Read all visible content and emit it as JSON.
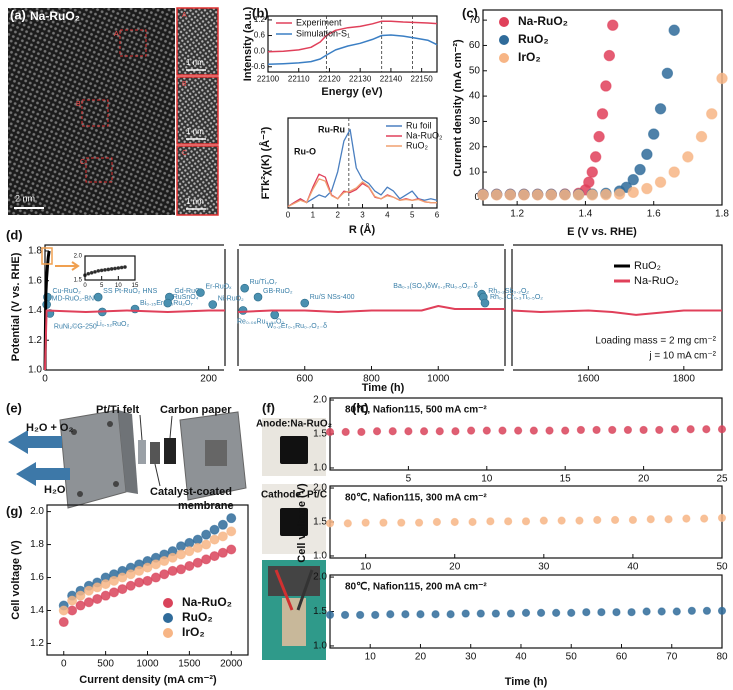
{
  "panels": {
    "labels": [
      "(a)",
      "(b)",
      "(c)",
      "(d)",
      "(e)",
      "(f)",
      "(g)",
      "(h)"
    ],
    "a": {
      "title": "Na-RuO₂",
      "scale": "2 nm",
      "regions": [
        "A",
        "B",
        "C"
      ],
      "insets": [
        {
          "letter": "A",
          "scale": "1 nm"
        },
        {
          "letter": "B",
          "scale": "1 nm"
        },
        {
          "letter": "C",
          "scale": "1 nm"
        }
      ]
    },
    "e": {
      "felt": "Pt/Ti felt",
      "paper": "Carbon paper",
      "outlet": "H₂O + O₂",
      "inlet": "H₂O",
      "ccm1": "Catalyst-coated",
      "ccm2": "membrane"
    },
    "f": {
      "anode": "Anode:Na-RuO₂",
      "cathode": "Cathode: Pt/C"
    }
  },
  "chart_data": [
    {
      "type": "line",
      "xlabel": "Energy (eV)",
      "ylabel": "Intensity (a.u.)",
      "xlim": [
        22100,
        22155
      ],
      "xticks": [
        22100,
        22110,
        22120,
        22130,
        22140,
        22150
      ],
      "ylim": [
        -0.8,
        1.35
      ],
      "yticks": [
        -0.6,
        {
          "value": 0,
          "label": "0.0"
        },
        0.6,
        1.2
      ],
      "vlines": [
        22119,
        22137,
        22147
      ],
      "legend": "upper left",
      "x": [
        22100,
        22105,
        22110,
        22114,
        22117,
        22119,
        22122,
        22126,
        22130,
        22134,
        22137,
        22140,
        22144,
        22148,
        22152,
        22155
      ],
      "series": [
        {
          "name": "Experiment",
          "color": "#e0405a",
          "values": [
            -0.02,
            0.0,
            0.05,
            0.15,
            0.35,
            0.6,
            0.8,
            0.9,
            0.95,
            1.05,
            1.15,
            1.15,
            1.12,
            1.1,
            1.08,
            1.06
          ]
        },
        {
          "name": "Simulation-S₁",
          "color": "#3b7fc4",
          "values": [
            -0.5,
            -0.48,
            -0.45,
            -0.4,
            -0.3,
            -0.15,
            0.05,
            0.2,
            0.3,
            0.45,
            0.6,
            0.62,
            0.58,
            0.5,
            0.42,
            0.25
          ]
        }
      ]
    },
    {
      "type": "line",
      "xlabel": "R (Å)",
      "ylabel": "FTk²χ(K) (Å⁻³)",
      "xlim": [
        0,
        6
      ],
      "xticks": [
        0,
        1,
        2,
        3,
        4,
        5,
        6
      ],
      "ylim": [
        -0.02,
        1.15
      ],
      "vlines": [
        2.45
      ],
      "legend": "upper right",
      "annotations": [
        "Ru-O",
        "Ru-Ru"
      ],
      "x": [
        0,
        0.25,
        0.5,
        0.75,
        1,
        1.25,
        1.5,
        1.75,
        2,
        2.25,
        2.5,
        2.75,
        3,
        3.25,
        3.5,
        3.75,
        4,
        4.25,
        4.5,
        4.75,
        5,
        5.25,
        5.5,
        5.75,
        6
      ],
      "series": [
        {
          "name": "Ru foil",
          "color": "#4a7fc0",
          "values": [
            0,
            0.05,
            0.1,
            0.05,
            0.1,
            0.15,
            0.12,
            0.2,
            0.45,
            0.85,
            1.0,
            0.5,
            0.35,
            0.3,
            0.2,
            0.15,
            0.25,
            0.2,
            0.1,
            0.15,
            0.2,
            0.1,
            0.08,
            0.1,
            0.08
          ]
        },
        {
          "name": "Na-RuO₂",
          "color": "#e0405a",
          "values": [
            0,
            0.05,
            0.1,
            0.05,
            0.25,
            0.42,
            0.38,
            0.15,
            0.1,
            0.2,
            0.18,
            0.22,
            0.3,
            0.25,
            0.12,
            0.1,
            0.15,
            0.12,
            0.08,
            0.1,
            0.08,
            0.1,
            0.06,
            0.05,
            0.05
          ]
        },
        {
          "name": "RuO₂",
          "color": "#f0a070",
          "values": [
            0,
            0.04,
            0.08,
            0.05,
            0.22,
            0.36,
            0.33,
            0.14,
            0.1,
            0.18,
            0.2,
            0.24,
            0.32,
            0.26,
            0.13,
            0.1,
            0.14,
            0.12,
            0.08,
            0.09,
            0.08,
            0.09,
            0.06,
            0.05,
            0.05
          ]
        }
      ]
    },
    {
      "type": "scatter",
      "xlabel": "E (V vs. RHE)",
      "ylabel": "Current density (mA cm⁻²)",
      "xlim": [
        1.1,
        1.8
      ],
      "xticks": [
        1.2,
        1.4,
        1.6,
        1.8
      ],
      "ylim": [
        -3,
        74
      ],
      "yticks": [
        0,
        10,
        20,
        30,
        40,
        50,
        60,
        70
      ],
      "legend": "upper left",
      "series": [
        {
          "name": "Na-RuO₂",
          "color": "#e0405a",
          "x": [
            1.1,
            1.14,
            1.18,
            1.22,
            1.26,
            1.3,
            1.34,
            1.38,
            1.4,
            1.41,
            1.42,
            1.43,
            1.44,
            1.45,
            1.46,
            1.47,
            1.48
          ],
          "values": [
            1.2,
            1.2,
            1.2,
            1.2,
            1.2,
            1.2,
            1.3,
            1.6,
            3,
            6,
            10,
            16,
            24,
            33,
            44,
            56,
            68
          ]
        },
        {
          "name": "RuO₂",
          "color": "#2f6b9a",
          "x": [
            1.1,
            1.14,
            1.18,
            1.22,
            1.26,
            1.3,
            1.34,
            1.38,
            1.42,
            1.46,
            1.5,
            1.52,
            1.54,
            1.56,
            1.58,
            1.6,
            1.62,
            1.64,
            1.66
          ],
          "values": [
            1.2,
            1.2,
            1.2,
            1.2,
            1.2,
            1.2,
            1.2,
            1.2,
            1.3,
            1.6,
            2.5,
            4,
            7,
            11,
            17,
            25,
            35,
            49,
            66
          ]
        },
        {
          "name": "IrO₂",
          "color": "#f7b585",
          "x": [
            1.1,
            1.14,
            1.18,
            1.22,
            1.26,
            1.3,
            1.34,
            1.38,
            1.42,
            1.46,
            1.5,
            1.54,
            1.58,
            1.62,
            1.66,
            1.7,
            1.74,
            1.77,
            1.8
          ],
          "values": [
            1,
            1,
            1,
            1,
            1,
            1,
            1,
            1,
            1,
            1.1,
            1.3,
            2,
            3.5,
            6,
            10,
            16,
            24,
            33,
            47
          ]
        }
      ]
    },
    {
      "type": "line",
      "xlabel": "Time (h)",
      "ylabel": "Potential (V vs. RHE)",
      "xlim": [
        0,
        1880
      ],
      "xbreaks": [
        [
          220,
          400
        ],
        [
          1200,
          1440
        ]
      ],
      "xticks": [
        0,
        200,
        600,
        800,
        1000,
        1600,
        1800
      ],
      "ylim": [
        1.0,
        1.84
      ],
      "yticks": [
        {
          "value": 1,
          "label": "1.0"
        },
        1.2,
        1.4,
        1.6,
        1.8
      ],
      "legend": "upper right",
      "annotations": [
        "Loading mass = 2 mg cm⁻²",
        "j = 10 mA cm⁻²"
      ],
      "series": [
        {
          "name": "RuO₂",
          "color": "#000000",
          "x": [
            0,
            1,
            2,
            3,
            4,
            5
          ],
          "values": [
            1.0,
            1.5,
            1.62,
            1.7,
            1.76,
            1.8
          ]
        },
        {
          "name": "Na-RuO₂",
          "color": "#e0405a",
          "x": [
            0,
            2,
            50,
            100,
            150,
            200,
            220,
            300,
            400,
            500,
            600,
            700,
            800,
            900,
            950,
            1000,
            1050,
            1100,
            1200,
            1300,
            1440,
            1500,
            1600,
            1650,
            1700,
            1800,
            1880
          ],
          "values": [
            1.0,
            1.4,
            1.39,
            1.4,
            1.39,
            1.4,
            1.4,
            null,
            1.39,
            1.4,
            1.4,
            1.39,
            1.4,
            1.4,
            1.4,
            1.43,
            1.41,
            1.41,
            1.41,
            null,
            1.4,
            1.39,
            1.4,
            1.39,
            1.37,
            1.4,
            1.4
          ]
        }
      ],
      "references": {
        "color": "#4a90b0",
        "names": [
          "Cu-RuO₂",
          "MD-RuO₂-BN",
          "RuNi₂©G-250",
          "Li₀.₅₂RuO₂",
          "SS Pt-RuO₂ HNS",
          "Bi₀.₁₅Er₁.₈₅Ru₂O₇",
          "Gd-RuO₂",
          "RuSnO₄",
          "Er-RuOₓ",
          "Ni-RuO₂",
          "Ru/Ti₄O₇",
          "GB-RuO₂",
          "Re₀.₀₆Ru₀.₉₄O₂",
          "W₀.₂Er₀.₁Ru₀.₇O₂₋δ",
          "Ru/S NSs-400",
          "Ba₀.₃(SO₄)δW₀.₂Ru₀.₅O₂₋δ",
          "Rh₀.₂Sb₀.₂O₂",
          "Rh₀.₂Cr₀.₃Ti₀.₅O₂"
        ],
        "x": [
          3,
          2,
          6,
          70,
          65,
          110,
          152,
          150,
          190,
          205,
          420,
          460,
          415,
          510,
          600,
          1130,
          1135,
          1140
        ],
        "values": [
          1.49,
          1.44,
          1.38,
          1.39,
          1.49,
          1.41,
          1.49,
          1.45,
          1.52,
          1.44,
          1.55,
          1.49,
          1.4,
          1.37,
          1.45,
          1.51,
          1.49,
          1.45
        ]
      }
    },
    {
      "type": "scatter",
      "xlim": [
        0,
        15
      ],
      "xticks": [
        0,
        5,
        10,
        15
      ],
      "ylim": [
        1.5,
        2.0
      ],
      "yticks": [
        1.5,
        {
          "value": 2,
          "label": "2.0"
        }
      ],
      "series": [
        {
          "color": "#111111",
          "x": [
            0,
            1,
            2,
            3,
            4,
            5,
            6,
            7,
            8,
            9,
            10,
            11,
            12
          ],
          "values": [
            1.6,
            1.63,
            1.65,
            1.67,
            1.69,
            1.7,
            1.71,
            1.72,
            1.73,
            1.74,
            1.75,
            1.76,
            1.77
          ]
        }
      ]
    },
    {
      "type": "scatter",
      "xlabel": "Current density (mA cm⁻²)",
      "ylabel": "Cell voltage (V)",
      "xlim": [
        -200,
        2200
      ],
      "xticks": [
        0,
        500,
        1000,
        1500,
        2000
      ],
      "ylim": [
        1.13,
        2.04
      ],
      "yticks": [
        1.2,
        1.4,
        1.6,
        1.8,
        {
          "value": 2,
          "label": "2.0"
        }
      ],
      "legend": "lower right",
      "x": [
        0,
        100,
        200,
        300,
        400,
        500,
        600,
        700,
        800,
        900,
        1000,
        1100,
        1200,
        1300,
        1400,
        1500,
        1600,
        1700,
        1800,
        1900,
        2000
      ],
      "series": [
        {
          "name": "Na-RuO₂",
          "color": "#d9435a",
          "values": [
            1.33,
            1.4,
            1.43,
            1.45,
            1.47,
            1.49,
            1.51,
            1.53,
            1.55,
            1.57,
            1.58,
            1.6,
            1.62,
            1.64,
            1.65,
            1.67,
            1.69,
            1.71,
            1.73,
            1.75,
            1.77
          ]
        },
        {
          "name": "RuO₂",
          "color": "#2f6b9a",
          "values": [
            1.43,
            1.49,
            1.52,
            1.55,
            1.57,
            1.6,
            1.62,
            1.64,
            1.66,
            1.68,
            1.7,
            1.72,
            1.74,
            1.76,
            1.79,
            1.81,
            1.83,
            1.86,
            1.89,
            1.92,
            1.96
          ]
        },
        {
          "name": "IrO₂",
          "color": "#f7b585",
          "values": [
            1.4,
            1.46,
            1.49,
            1.52,
            1.54,
            1.56,
            1.58,
            1.6,
            1.62,
            1.64,
            1.66,
            1.68,
            1.7,
            1.72,
            1.74,
            1.76,
            1.78,
            1.8,
            1.83,
            1.85,
            1.88
          ]
        }
      ]
    },
    {
      "type": "scatter",
      "xlim": [
        0,
        25
      ],
      "xticks": [
        5,
        10,
        15,
        20,
        25
      ],
      "ylim": [
        0.97,
        2.03
      ],
      "yticks": [
        {
          "value": 1,
          "label": "1.0"
        },
        1.5,
        {
          "value": 2,
          "label": "2.0"
        }
      ],
      "annotations": [
        "80℃, Nafion115, 500 mA cm⁻²"
      ],
      "series": [
        {
          "color": "#d9435a",
          "x": [
            0,
            1,
            2,
            3,
            4,
            5,
            6,
            7,
            8,
            9,
            10,
            11,
            12,
            13,
            14,
            15,
            16,
            17,
            18,
            19,
            20,
            21,
            22,
            23,
            24,
            25
          ],
          "values": [
            1.53,
            1.53,
            1.53,
            1.54,
            1.54,
            1.54,
            1.54,
            1.54,
            1.54,
            1.55,
            1.55,
            1.55,
            1.55,
            1.55,
            1.55,
            1.55,
            1.56,
            1.56,
            1.56,
            1.56,
            1.56,
            1.56,
            1.57,
            1.57,
            1.57,
            1.57
          ]
        }
      ]
    },
    {
      "type": "scatter",
      "ylabel": "Cell voltage (V)",
      "xlim": [
        6,
        50
      ],
      "xticks": [
        10,
        20,
        30,
        40,
        50
      ],
      "ylim": [
        0.97,
        2.03
      ],
      "yticks": [
        {
          "value": 1,
          "label": "1.0"
        },
        1.5,
        {
          "value": 2,
          "label": "2.0"
        }
      ],
      "annotations": [
        "80℃, Nafion115, 300 mA cm⁻²"
      ],
      "series": [
        {
          "color": "#f7b585",
          "x": [
            6,
            8,
            10,
            12,
            14,
            16,
            18,
            20,
            22,
            24,
            26,
            28,
            30,
            32,
            34,
            36,
            38,
            40,
            42,
            44,
            46,
            48,
            50
          ],
          "values": [
            1.48,
            1.48,
            1.49,
            1.49,
            1.49,
            1.49,
            1.5,
            1.5,
            1.5,
            1.51,
            1.51,
            1.51,
            1.52,
            1.52,
            1.52,
            1.53,
            1.53,
            1.53,
            1.54,
            1.54,
            1.55,
            1.55,
            1.56
          ]
        }
      ]
    },
    {
      "type": "scatter",
      "xlabel": "Time (h)",
      "xlim": [
        2,
        80
      ],
      "xticks": [
        10,
        20,
        30,
        40,
        50,
        60,
        70,
        80
      ],
      "ylim": [
        0.97,
        2.03
      ],
      "yticks": [
        {
          "value": 1,
          "label": "1.0"
        },
        1.5,
        {
          "value": 2,
          "label": "2.0"
        }
      ],
      "annotations": [
        "80℃, Nafion115, 200 mA cm⁻²"
      ],
      "series": [
        {
          "color": "#2f6b9a",
          "x": [
            2,
            5,
            8,
            11,
            14,
            17,
            20,
            23,
            26,
            29,
            32,
            35,
            38,
            41,
            44,
            47,
            50,
            53,
            56,
            59,
            62,
            65,
            68,
            71,
            74,
            77,
            80
          ],
          "values": [
            1.45,
            1.45,
            1.45,
            1.45,
            1.46,
            1.46,
            1.46,
            1.46,
            1.46,
            1.47,
            1.47,
            1.47,
            1.47,
            1.48,
            1.48,
            1.48,
            1.48,
            1.49,
            1.49,
            1.49,
            1.49,
            1.5,
            1.5,
            1.5,
            1.51,
            1.51,
            1.51
          ]
        }
      ]
    }
  ]
}
